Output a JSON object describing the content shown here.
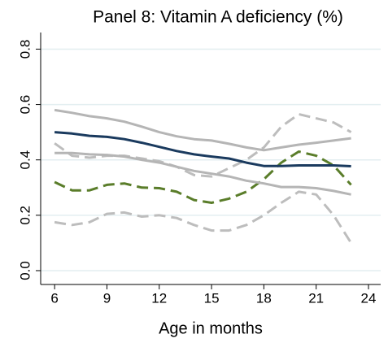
{
  "chart_data": {
    "type": "line",
    "title": "Panel 8: Vitamin A deficiency (%)",
    "x_label": "Age in months",
    "x": [
      6,
      7,
      8,
      9,
      10,
      11,
      12,
      13,
      14,
      15,
      16,
      17,
      18,
      19,
      20,
      21,
      22,
      23
    ],
    "series": [
      {
        "color": "#bdbdbd",
        "dashed": true,
        "values": [
          0.46,
          0.415,
          0.408,
          0.415,
          0.415,
          0.405,
          0.395,
          0.375,
          0.345,
          0.34,
          0.37,
          0.4,
          0.445,
          0.52,
          0.565,
          0.55,
          0.535,
          0.5
        ]
      },
      {
        "color": "#bdbdbd",
        "dashed": true,
        "values": [
          0.175,
          0.165,
          0.175,
          0.205,
          0.21,
          0.195,
          0.2,
          0.19,
          0.165,
          0.145,
          0.145,
          0.165,
          0.2,
          0.245,
          0.285,
          0.275,
          0.2,
          0.1
        ]
      },
      {
        "color": "#5a7d2a",
        "dashed": true,
        "values": [
          0.32,
          0.29,
          0.29,
          0.31,
          0.315,
          0.3,
          0.298,
          0.285,
          0.255,
          0.245,
          0.26,
          0.285,
          0.33,
          0.39,
          0.43,
          0.415,
          0.38,
          0.31
        ]
      },
      {
        "color": "#b5b5b5",
        "dashed": false,
        "values": [
          0.58,
          0.57,
          0.558,
          0.55,
          0.538,
          0.52,
          0.5,
          0.485,
          0.475,
          0.47,
          0.458,
          0.445,
          0.435,
          0.445,
          0.455,
          0.462,
          0.47,
          0.478
        ]
      },
      {
        "color": "#b5b5b5",
        "dashed": false,
        "values": [
          0.425,
          0.425,
          0.42,
          0.418,
          0.412,
          0.4,
          0.39,
          0.375,
          0.36,
          0.35,
          0.34,
          0.325,
          0.315,
          0.302,
          0.302,
          0.298,
          0.288,
          0.275
        ]
      },
      {
        "color": "#1a3a5e",
        "dashed": false,
        "values": [
          0.5,
          0.495,
          0.487,
          0.483,
          0.475,
          0.462,
          0.447,
          0.432,
          0.42,
          0.412,
          0.405,
          0.39,
          0.378,
          0.378,
          0.38,
          0.38,
          0.38,
          0.377
        ]
      }
    ],
    "xlim": [
      5.2,
      24.7
    ],
    "xticks": [
      6,
      9,
      12,
      15,
      18,
      21,
      24
    ],
    "ylim": [
      -0.05,
      0.86
    ],
    "yticks": [
      {
        "value": 0,
        "label": "0.0"
      },
      {
        "value": 0.2,
        "label": "0.2"
      },
      {
        "value": 0.4,
        "label": "0.4"
      },
      {
        "value": 0.6,
        "label": "0.6"
      },
      {
        "value": 0.8,
        "label": "0.8"
      }
    ],
    "grid": true,
    "grid_color": "#e3eef0"
  }
}
